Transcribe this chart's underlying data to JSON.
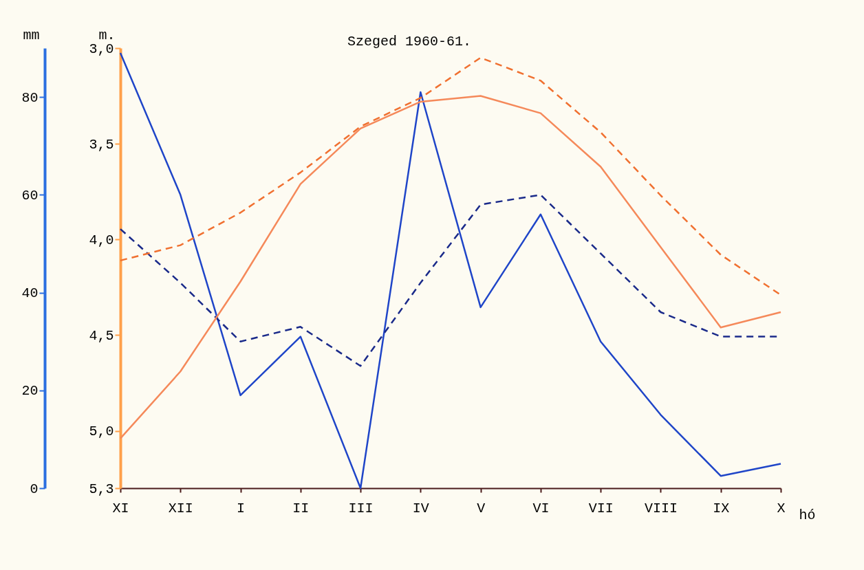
{
  "chart_data": {
    "type": "line",
    "title": "Szeged 1960-61.",
    "xlabel": "hó",
    "ylabel": "mm",
    "y2label": "m.",
    "categories": [
      "XI",
      "XII",
      "I",
      "II",
      "III",
      "IV",
      "V",
      "VI",
      "VII",
      "VIII",
      "IX",
      "X"
    ],
    "ylim": [
      0,
      90
    ],
    "yticks": [
      0,
      20,
      40,
      60,
      80
    ],
    "y2lim": [
      5.3,
      3.0
    ],
    "y2ticks": [
      {
        "value": 3.0,
        "label": "3,0"
      },
      {
        "value": 3.5,
        "label": "3,5"
      },
      {
        "value": 4.0,
        "label": "4,0"
      },
      {
        "value": 4.5,
        "label": "4,5"
      },
      {
        "value": 5.0,
        "label": "5,0"
      },
      {
        "value": 5.3,
        "label": "5,3"
      }
    ],
    "grid": false,
    "marker": "none",
    "series": [
      {
        "color": "#1f45c8",
        "line_style": "solid",
        "axis": "y",
        "values": [
          89,
          60,
          19,
          31,
          0,
          81,
          37,
          56,
          30,
          15,
          2.5,
          5
        ]
      },
      {
        "color": "#1a2a8a",
        "line_style": "dashed",
        "axis": "y",
        "values": [
          53,
          42,
          30,
          33,
          25,
          42,
          58,
          60,
          48,
          36,
          31,
          31
        ]
      },
      {
        "color": "#f5895a",
        "line_style": "solid",
        "axis": "y2",
        "values": [
          5.04,
          4.69,
          4.22,
          3.71,
          3.42,
          3.28,
          3.25,
          3.34,
          3.62,
          4.04,
          4.46,
          4.38
        ]
      },
      {
        "color": "#f07030",
        "line_style": "dashed",
        "axis": "y2",
        "values": [
          4.11,
          4.03,
          3.86,
          3.65,
          3.41,
          3.26,
          3.05,
          3.17,
          3.44,
          3.77,
          4.08,
          4.29
        ]
      }
    ]
  }
}
